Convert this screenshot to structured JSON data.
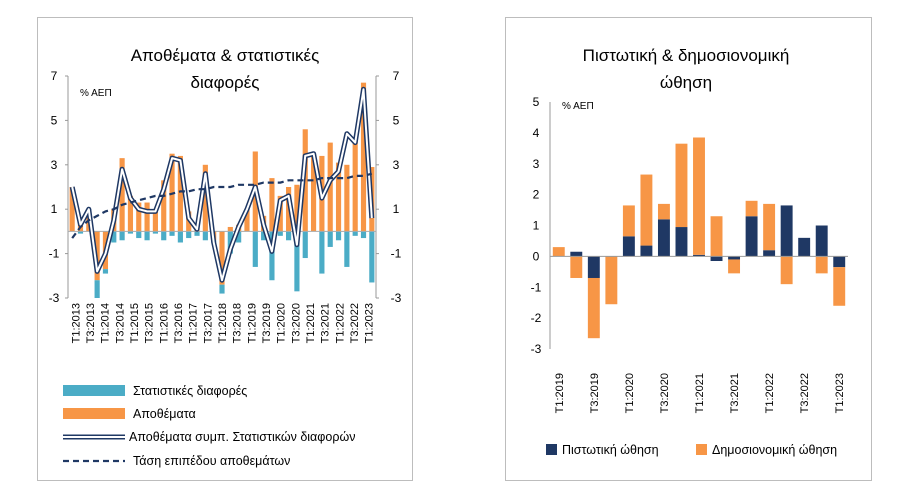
{
  "colors": {
    "inventories": "#f79646",
    "statistical_discrepancies": "#4bacc6",
    "combined_fill": "#ffffff",
    "combined_outline": "#1f3864",
    "trend": "#1f3864",
    "credit_impulse": "#1f3864",
    "fiscal_impulse": "#f79646"
  },
  "chart_data": [
    {
      "type": "bar",
      "title": "Αποθέματα & στατιστικές διαφορές",
      "unit_label": "% ΑΕΠ",
      "ylim": [
        -3,
        7
      ],
      "yticks": [
        7,
        5,
        3,
        1,
        -1,
        -3
      ],
      "xtick_labels": [
        "T1:2013",
        "T3:2013",
        "T1:2014",
        "T3:2014",
        "T1:2015",
        "T3:2015",
        "T1:2016",
        "T3:2016",
        "T1:2017",
        "T3:2017",
        "T1:2018",
        "T3:2018",
        "T1:2019",
        "T3:2019",
        "T1:2020",
        "T3:2020",
        "T1:2021",
        "T3:2021",
        "T1:2022",
        "T3:2022",
        "T1:2023"
      ],
      "series": [
        {
          "name": "Στατιστικές διαφορές",
          "kind": "bar",
          "values": [
            0.0,
            -0.1,
            0.3,
            -0.8,
            -0.2,
            -0.5,
            -0.4,
            -0.1,
            -0.3,
            -0.4,
            -0.1,
            -0.4,
            -0.2,
            -0.5,
            -0.3,
            -0.2,
            -0.4,
            -0.1,
            -0.4,
            -1.0,
            -0.5,
            0.0,
            -1.6,
            -0.4,
            -2.2,
            -0.2,
            -0.4,
            -2.7,
            -1.2,
            0.0,
            -1.9,
            -0.7,
            -0.4,
            -1.6,
            -0.2,
            -0.3,
            -2.3
          ]
        },
        {
          "name": "Αποθέματα",
          "kind": "bar",
          "values": [
            2.0,
            0.4,
            0.7,
            -2.2,
            -1.7,
            1.0,
            3.3,
            1.6,
            1.3,
            1.3,
            1.0,
            2.3,
            3.5,
            3.4,
            0.9,
            0.3,
            3.0,
            -0.4,
            -2.4,
            0.2,
            0.3,
            1.0,
            3.6,
            0.7,
            2.4,
            1.6,
            2.0,
            2.1,
            4.6,
            3.5,
            3.4,
            4.0,
            3.1,
            3.0,
            4.2,
            6.7,
            2.9
          ]
        },
        {
          "name": "Αποθέματα συμπ. Στατιστικών διαφορών",
          "kind": "line",
          "values": [
            2.0,
            0.3,
            1.0,
            -1.8,
            -1.0,
            0.5,
            2.8,
            1.5,
            1.0,
            0.9,
            0.9,
            1.9,
            3.3,
            3.2,
            0.6,
            0.1,
            2.6,
            -0.5,
            -2.2,
            -0.8,
            0.2,
            1.0,
            2.0,
            0.3,
            -0.9,
            1.4,
            1.6,
            -0.6,
            3.4,
            3.5,
            1.5,
            2.3,
            2.7,
            4.4,
            4.0,
            6.4,
            0.6
          ]
        },
        {
          "name": "Τάση επιπέδου αποθεμάτων",
          "kind": "dashed-line",
          "values": [
            -0.3,
            0.2,
            0.5,
            0.7,
            0.9,
            1.0,
            1.2,
            1.3,
            1.4,
            1.5,
            1.6,
            1.6,
            1.7,
            1.8,
            1.8,
            1.9,
            1.9,
            2.0,
            2.0,
            2.0,
            2.1,
            2.1,
            2.1,
            2.2,
            2.2,
            2.2,
            2.3,
            2.3,
            2.3,
            2.3,
            2.4,
            2.4,
            2.4,
            2.4,
            2.5,
            2.5,
            2.6
          ]
        }
      ]
    },
    {
      "type": "bar",
      "stacked": true,
      "title": "Πιστωτική & δημοσιονομική ώθηση",
      "unit_label": "% ΑΕΠ",
      "ylim": [
        -3,
        5
      ],
      "yticks": [
        5,
        4,
        3,
        2,
        1,
        0,
        -1,
        -2,
        -3
      ],
      "xtick_labels": [
        "T1:2019",
        "T3:2019",
        "T1:2020",
        "T3:2020",
        "T1:2021",
        "T3:2021",
        "T1:2022",
        "T3:2022",
        "T1:2023"
      ],
      "series": [
        {
          "name": "Πιστωτική ώθηση",
          "values": [
            0.0,
            0.15,
            -0.7,
            0.0,
            0.65,
            0.35,
            1.2,
            0.95,
            0.05,
            -0.15,
            -0.1,
            1.3,
            0.2,
            1.65,
            0.6,
            1.0,
            -0.35
          ]
        },
        {
          "name": "Δημοσιονομική ώθηση",
          "values": [
            0.3,
            -0.7,
            -1.95,
            -1.55,
            1.0,
            2.3,
            0.5,
            2.7,
            3.8,
            1.3,
            -0.45,
            0.5,
            1.5,
            -0.9,
            0.0,
            -0.55,
            -1.25
          ]
        }
      ]
    }
  ]
}
